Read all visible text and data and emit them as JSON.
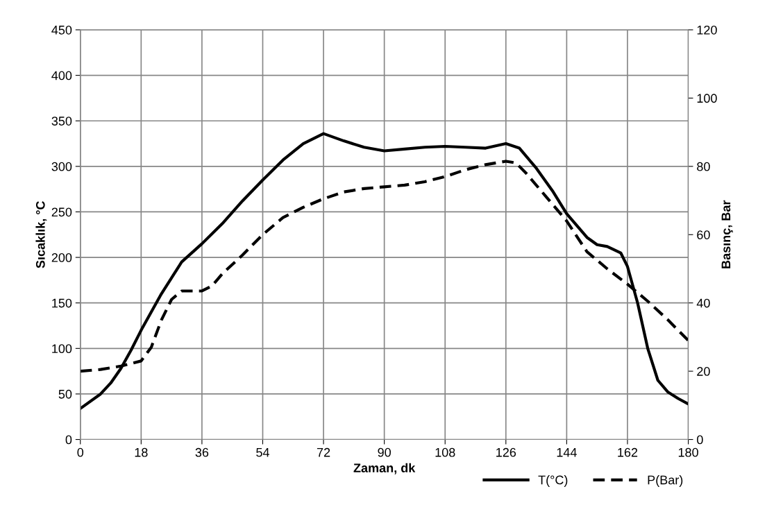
{
  "chart_data": {
    "type": "line",
    "xlabel": "Zaman, dk",
    "ylabel": "Sıcaklık, °C",
    "y2label": "Basınç, Bar",
    "xlim": [
      0,
      180
    ],
    "xticks": [
      0,
      18,
      36,
      54,
      72,
      90,
      108,
      126,
      144,
      162,
      180
    ],
    "ylim": [
      0,
      450
    ],
    "yticks": [
      0,
      50,
      100,
      150,
      200,
      250,
      300,
      350,
      400,
      450
    ],
    "y2lim": [
      0,
      120
    ],
    "y2ticks": [
      0,
      20,
      40,
      60,
      80,
      100,
      120
    ],
    "grid": true,
    "legend": "bottom right",
    "series": [
      {
        "name": "T(°C)",
        "color": "#000000",
        "line_style": "solid",
        "x": [
          0,
          6,
          9,
          12,
          15,
          18,
          24,
          30,
          36,
          42,
          48,
          54,
          60,
          66,
          72,
          78,
          84,
          90,
          96,
          102,
          108,
          114,
          120,
          126,
          130,
          135,
          140,
          144,
          150,
          153,
          156,
          160,
          162,
          165,
          168,
          171,
          174,
          177,
          180
        ],
        "values": [
          34,
          50,
          62,
          78,
          98,
          120,
          160,
          195,
          215,
          237,
          262,
          285,
          307,
          325,
          336,
          328,
          321,
          317,
          319,
          321,
          322,
          321,
          320,
          325,
          320,
          298,
          272,
          248,
          222,
          214,
          212,
          205,
          190,
          150,
          100,
          65,
          52,
          45,
          39
        ]
      },
      {
        "name": "P(Bar)",
        "color": "#000000",
        "line_style": "dashed",
        "axis": "y2",
        "x": [
          0,
          6,
          12,
          18,
          21,
          24,
          27,
          30,
          36,
          39,
          42,
          48,
          54,
          60,
          66,
          72,
          78,
          84,
          90,
          96,
          102,
          108,
          114,
          120,
          126,
          129,
          132,
          138,
          144,
          150,
          156,
          162,
          168,
          174,
          180
        ],
        "values": [
          20,
          20.5,
          21.5,
          23,
          27,
          35,
          41,
          43.5,
          43.5,
          45,
          48.5,
          54,
          60,
          65,
          68,
          70.5,
          72.5,
          73.5,
          74,
          74.5,
          75.5,
          77,
          79,
          80.5,
          81.5,
          81,
          78,
          71,
          64,
          55,
          50,
          45.5,
          40.5,
          35,
          29
        ]
      }
    ]
  }
}
